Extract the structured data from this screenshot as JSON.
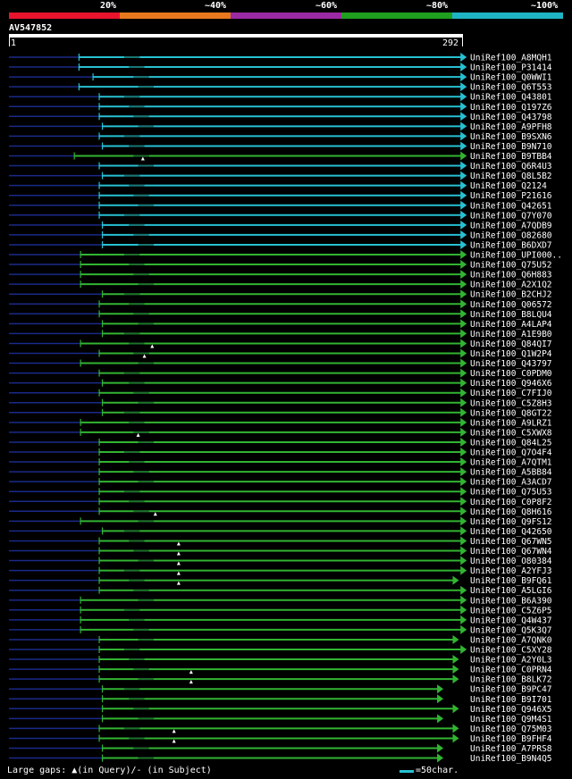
{
  "legend": {
    "segments": [
      {
        "label": "20%",
        "color": "#e8142d"
      },
      {
        "label": "~40%",
        "color": "#e8781e"
      },
      {
        "label": "~60%",
        "color": "#9a2aa3"
      },
      {
        "label": "~80%",
        "color": "#1fa01f"
      },
      {
        "label": "~100%",
        "color": "#1fb4c3"
      }
    ]
  },
  "query": {
    "name": "AV547852",
    "start": "1",
    "end": "292"
  },
  "colors": {
    "cyan": "#27c1d3",
    "green": "#32b432",
    "navy": "#1a2a88",
    "gap": "#0a4a5a"
  },
  "hits": [
    {
      "name": "UniRef100_A8MQH1",
      "color": "cyan",
      "start": 46,
      "end": 295
    },
    {
      "name": "UniRef100_P31414",
      "color": "cyan",
      "start": 46,
      "end": 295
    },
    {
      "name": "UniRef100_Q0WWI1",
      "color": "cyan",
      "start": 55,
      "end": 295
    },
    {
      "name": "UniRef100_Q6T553",
      "color": "cyan",
      "start": 46,
      "end": 295
    },
    {
      "name": "UniRef100_Q43801",
      "color": "cyan",
      "start": 59,
      "end": 295
    },
    {
      "name": "UniRef100_Q197Z6",
      "color": "cyan",
      "start": 59,
      "end": 295
    },
    {
      "name": "UniRef100_Q43798",
      "color": "cyan",
      "start": 59,
      "end": 295
    },
    {
      "name": "UniRef100_A9PFH8",
      "color": "cyan",
      "start": 61,
      "end": 295
    },
    {
      "name": "UniRef100_B9SXN6",
      "color": "cyan",
      "start": 59,
      "end": 295
    },
    {
      "name": "UniRef100_B9N710",
      "color": "cyan",
      "start": 61,
      "end": 295
    },
    {
      "name": "UniRef100_B9TBB4",
      "color": "green",
      "start": 43,
      "end": 295,
      "mark": 87
    },
    {
      "name": "UniRef100_Q6R4U3",
      "color": "cyan",
      "start": 59,
      "end": 295
    },
    {
      "name": "UniRef100_Q8L5B2",
      "color": "cyan",
      "start": 61,
      "end": 295
    },
    {
      "name": "UniRef100_Q2124",
      "color": "cyan",
      "start": 59,
      "end": 295
    },
    {
      "name": "UniRef100_P21616",
      "color": "cyan",
      "start": 59,
      "end": 295
    },
    {
      "name": "UniRef100_Q42651",
      "color": "cyan",
      "start": 59,
      "end": 295
    },
    {
      "name": "UniRef100_Q7Y070",
      "color": "cyan",
      "start": 59,
      "end": 295
    },
    {
      "name": "UniRef100_A7QDB9",
      "color": "cyan",
      "start": 61,
      "end": 295
    },
    {
      "name": "UniRef100_O82680",
      "color": "cyan",
      "start": 61,
      "end": 295
    },
    {
      "name": "UniRef100_B6DXD7",
      "color": "cyan",
      "start": 61,
      "end": 295
    },
    {
      "name": "UniRef100_UPI000..",
      "color": "green",
      "start": 47,
      "end": 295
    },
    {
      "name": "UniRef100_Q75U52",
      "color": "green",
      "start": 47,
      "end": 295
    },
    {
      "name": "UniRef100_Q6H883",
      "color": "green",
      "start": 47,
      "end": 295
    },
    {
      "name": "UniRef100_A2X1Q2",
      "color": "green",
      "start": 47,
      "end": 295
    },
    {
      "name": "UniRef100_B2CHJ2",
      "color": "green",
      "start": 61,
      "end": 295
    },
    {
      "name": "UniRef100_Q06572",
      "color": "green",
      "start": 59,
      "end": 295
    },
    {
      "name": "UniRef100_B8LQU4",
      "color": "green",
      "start": 59,
      "end": 295
    },
    {
      "name": "UniRef100_A4LAP4",
      "color": "green",
      "start": 61,
      "end": 295
    },
    {
      "name": "UniRef100_A1E9B0",
      "color": "green",
      "start": 61,
      "end": 295
    },
    {
      "name": "UniRef100_Q84QI7",
      "color": "green",
      "start": 47,
      "end": 295,
      "mark": 93
    },
    {
      "name": "UniRef100_Q1W2P4",
      "color": "green",
      "start": 59,
      "end": 295,
      "mark": 88
    },
    {
      "name": "UniRef100_Q43797",
      "color": "green",
      "start": 47,
      "end": 295
    },
    {
      "name": "UniRef100_C0PDM0",
      "color": "green",
      "start": 59,
      "end": 295
    },
    {
      "name": "UniRef100_Q946X6",
      "color": "green",
      "start": 61,
      "end": 295
    },
    {
      "name": "UniRef100_C7FIJ0",
      "color": "green",
      "start": 59,
      "end": 295
    },
    {
      "name": "UniRef100_C5Z8H3",
      "color": "green",
      "start": 61,
      "end": 295
    },
    {
      "name": "UniRef100_Q8GT22",
      "color": "green",
      "start": 61,
      "end": 295
    },
    {
      "name": "UniRef100_A9LRZ1",
      "color": "green",
      "start": 47,
      "end": 295
    },
    {
      "name": "UniRef100_C5XWX8",
      "color": "green",
      "start": 47,
      "end": 295,
      "mark": 84
    },
    {
      "name": "UniRef100_Q84L25",
      "color": "green",
      "start": 59,
      "end": 295
    },
    {
      "name": "UniRef100_Q7O4F4",
      "color": "green",
      "start": 59,
      "end": 295
    },
    {
      "name": "UniRef100_A7QTM1",
      "color": "green",
      "start": 59,
      "end": 295
    },
    {
      "name": "UniRef100_A5BB84",
      "color": "green",
      "start": 59,
      "end": 295
    },
    {
      "name": "UniRef100_A3ACD7",
      "color": "green",
      "start": 59,
      "end": 295
    },
    {
      "name": "UniRef100_Q75U53",
      "color": "green",
      "start": 59,
      "end": 295
    },
    {
      "name": "UniRef100_C0P8F2",
      "color": "green",
      "start": 59,
      "end": 295
    },
    {
      "name": "UniRef100_Q8H616",
      "color": "green",
      "start": 59,
      "end": 295,
      "mark": 95
    },
    {
      "name": "UniRef100_Q9FS12",
      "color": "green",
      "start": 47,
      "end": 295
    },
    {
      "name": "UniRef100_Q42650",
      "color": "green",
      "start": 61,
      "end": 295
    },
    {
      "name": "UniRef100_Q67WN5",
      "color": "green",
      "start": 59,
      "end": 295,
      "mark": 110
    },
    {
      "name": "UniRef100_Q67WN4",
      "color": "green",
      "start": 59,
      "end": 295,
      "mark": 110
    },
    {
      "name": "UniRef100_O80384",
      "color": "green",
      "start": 59,
      "end": 295,
      "mark": 110
    },
    {
      "name": "UniRef100_A2YFJ3",
      "color": "green",
      "start": 59,
      "end": 295,
      "mark": 110
    },
    {
      "name": "UniRef100_B9FQ61",
      "color": "green",
      "start": 59,
      "end": 290,
      "mark": 110
    },
    {
      "name": "UniRef100_A5LGI6",
      "color": "green",
      "start": 59,
      "end": 295
    },
    {
      "name": "UniRef100_B6A390",
      "color": "green",
      "start": 47,
      "end": 295
    },
    {
      "name": "UniRef100_C5Z6P5",
      "color": "green",
      "start": 47,
      "end": 295
    },
    {
      "name": "UniRef100_Q4W437",
      "color": "green",
      "start": 47,
      "end": 295
    },
    {
      "name": "UniRef100_Q5K3Q7",
      "color": "green",
      "start": 47,
      "end": 295
    },
    {
      "name": "UniRef100_A7QNK0",
      "color": "green",
      "start": 59,
      "end": 290
    },
    {
      "name": "UniRef100_C5XY28",
      "color": "green",
      "start": 59,
      "end": 295
    },
    {
      "name": "UniRef100_A2Y0L3",
      "color": "green",
      "start": 59,
      "end": 290
    },
    {
      "name": "UniRef100_C0PRN4",
      "color": "green",
      "start": 59,
      "end": 290,
      "mark": 118
    },
    {
      "name": "UniRef100_B8LK72",
      "color": "green",
      "start": 59,
      "end": 290,
      "mark": 118
    },
    {
      "name": "UniRef100_B9PC47",
      "color": "green",
      "start": 61,
      "end": 280
    },
    {
      "name": "UniRef100_B9I701",
      "color": "green",
      "start": 61,
      "end": 280
    },
    {
      "name": "UniRef100_Q946X5",
      "color": "green",
      "start": 61,
      "end": 290
    },
    {
      "name": "UniRef100_Q9M4S1",
      "color": "green",
      "start": 61,
      "end": 280
    },
    {
      "name": "UniRef100_Q75M03",
      "color": "green",
      "start": 59,
      "end": 290,
      "mark": 107
    },
    {
      "name": "UniRef100_B9FHF4",
      "color": "green",
      "start": 59,
      "end": 290,
      "mark": 107
    },
    {
      "name": "UniRef100_A7PRS8",
      "color": "green",
      "start": 61,
      "end": 280
    },
    {
      "name": "UniRef100_B9N4Q5",
      "color": "green",
      "start": 61,
      "end": 280
    }
  ],
  "footer": {
    "text": "Large gaps: ▲(in Query)/- (in Subject)",
    "scale_label": "=50char."
  }
}
